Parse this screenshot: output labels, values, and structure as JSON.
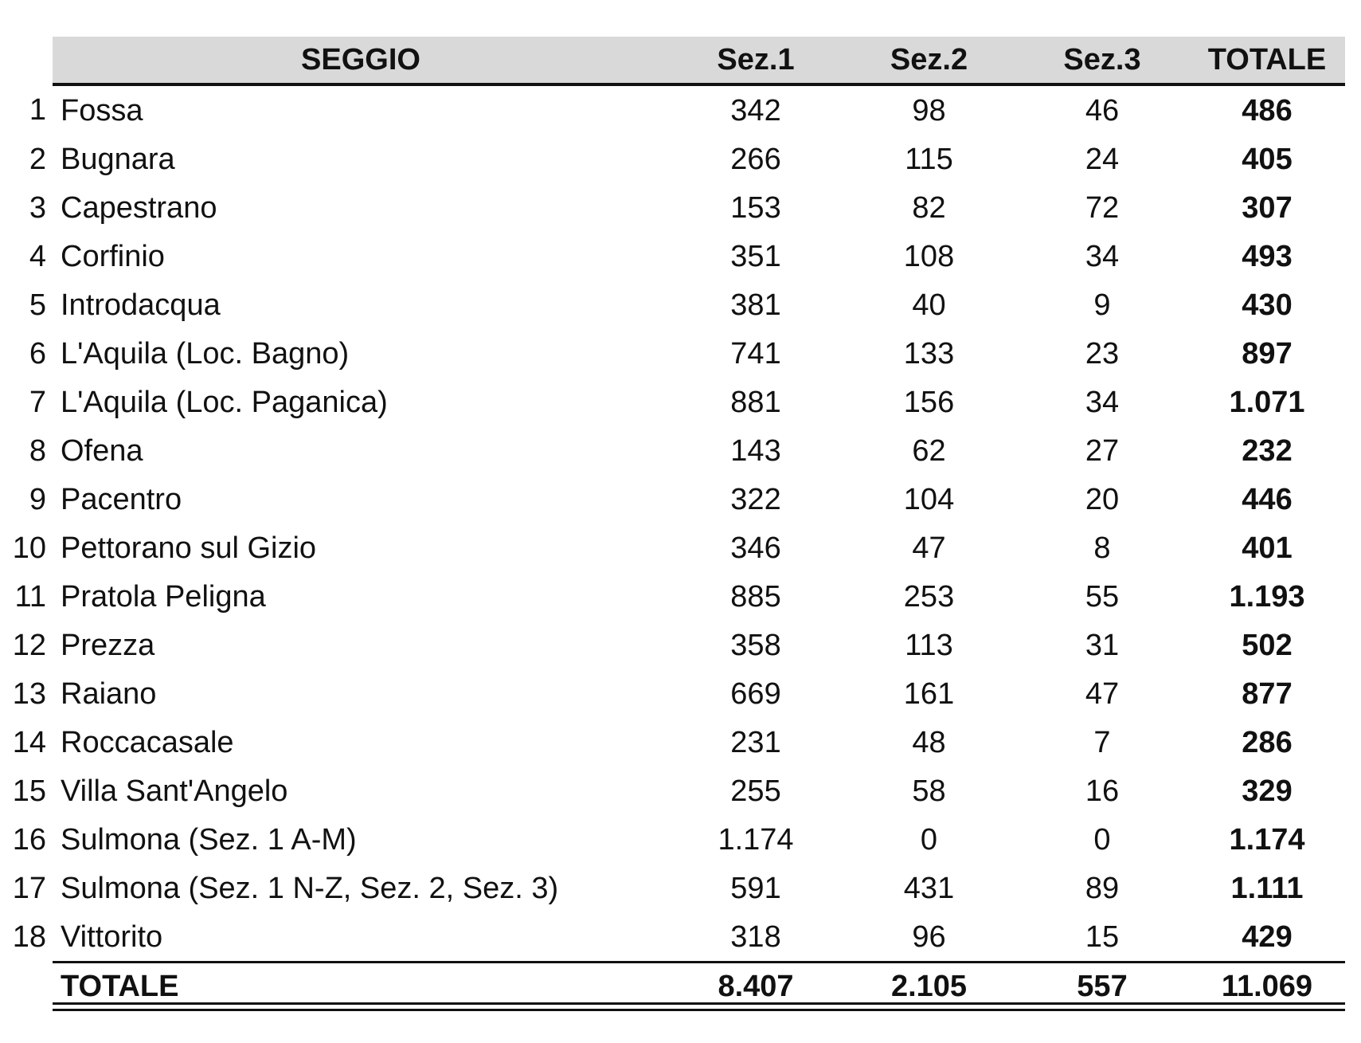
{
  "header": {
    "seggio": "SEGGIO",
    "sez1": "Sez.1",
    "sez2": "Sez.2",
    "sez3": "Sez.3",
    "totale": "TOTALE"
  },
  "rows": [
    {
      "n": "1",
      "name": "Fossa",
      "s1": "342",
      "s2": "98",
      "s3": "46",
      "tot": "486"
    },
    {
      "n": "2",
      "name": "Bugnara",
      "s1": "266",
      "s2": "115",
      "s3": "24",
      "tot": "405"
    },
    {
      "n": "3",
      "name": "Capestrano",
      "s1": "153",
      "s2": "82",
      "s3": "72",
      "tot": "307"
    },
    {
      "n": "4",
      "name": "Corfinio",
      "s1": "351",
      "s2": "108",
      "s3": "34",
      "tot": "493"
    },
    {
      "n": "5",
      "name": "Introdacqua",
      "s1": "381",
      "s2": "40",
      "s3": "9",
      "tot": "430"
    },
    {
      "n": "6",
      "name": "L'Aquila (Loc. Bagno)",
      "s1": "741",
      "s2": "133",
      "s3": "23",
      "tot": "897"
    },
    {
      "n": "7",
      "name": "L'Aquila (Loc. Paganica)",
      "s1": "881",
      "s2": "156",
      "s3": "34",
      "tot": "1.071"
    },
    {
      "n": "8",
      "name": "Ofena",
      "s1": "143",
      "s2": "62",
      "s3": "27",
      "tot": "232"
    },
    {
      "n": "9",
      "name": "Pacentro",
      "s1": "322",
      "s2": "104",
      "s3": "20",
      "tot": "446"
    },
    {
      "n": "10",
      "name": "Pettorano sul Gizio",
      "s1": "346",
      "s2": "47",
      "s3": "8",
      "tot": "401"
    },
    {
      "n": "11",
      "name": "Pratola Peligna",
      "s1": "885",
      "s2": "253",
      "s3": "55",
      "tot": "1.193"
    },
    {
      "n": "12",
      "name": "Prezza",
      "s1": "358",
      "s2": "113",
      "s3": "31",
      "tot": "502"
    },
    {
      "n": "13",
      "name": "Raiano",
      "s1": "669",
      "s2": "161",
      "s3": "47",
      "tot": "877"
    },
    {
      "n": "14",
      "name": "Roccacasale",
      "s1": "231",
      "s2": "48",
      "s3": "7",
      "tot": "286"
    },
    {
      "n": "15",
      "name": "Villa Sant'Angelo",
      "s1": "255",
      "s2": "58",
      "s3": "16",
      "tot": "329"
    },
    {
      "n": "16",
      "name": "Sulmona (Sez. 1 A-M)",
      "s1": "1.174",
      "s2": "0",
      "s3": "0",
      "tot": "1.174"
    },
    {
      "n": "17",
      "name": "Sulmona (Sez. 1 N-Z, Sez. 2, Sez. 3)",
      "s1": "591",
      "s2": "431",
      "s3": "89",
      "tot": "1.111"
    },
    {
      "n": "18",
      "name": "Vittorito",
      "s1": "318",
      "s2": "96",
      "s3": "15",
      "tot": "429"
    }
  ],
  "footer": {
    "label": "TOTALE",
    "s1": "8.407",
    "s2": "2.105",
    "s3": "557",
    "tot": "11.069"
  }
}
